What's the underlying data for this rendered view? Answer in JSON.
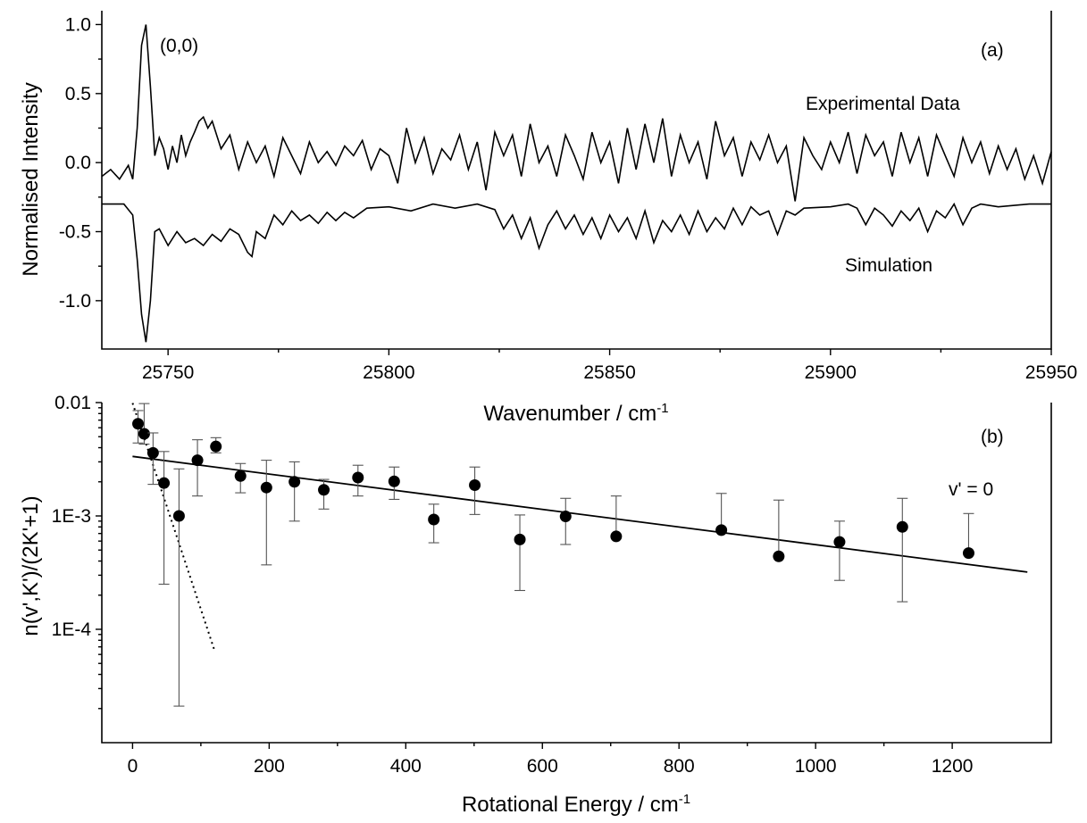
{
  "chart_data": [
    {
      "panel": "(a)",
      "type": "line",
      "annotation_peak": "(0,0)",
      "xlabel": "Wavenumber / cm",
      "xlabel_sup": "-1",
      "ylabel": "Normalised Intensity",
      "xlim": [
        25735,
        25950
      ],
      "ylim": [
        -1.35,
        1.1
      ],
      "xticks": [
        25750,
        25800,
        25850,
        25900,
        25950
      ],
      "yticks": [
        1.0,
        0.5,
        0.0,
        -0.5,
        -1.0
      ],
      "ytick_labels": [
        "1.0",
        "0.5",
        "0.0",
        "-0.5",
        "-1.0"
      ],
      "series": [
        {
          "name": "Experimental Data",
          "baseline": 0.0,
          "x": [
            25735,
            25737,
            25739,
            25741,
            25742,
            25743,
            25744,
            25745,
            25746,
            25747,
            25748,
            25749,
            25750,
            25751,
            25752,
            25753,
            25754,
            25755,
            25756,
            25757,
            25758,
            25759,
            25760,
            25762,
            25764,
            25766,
            25768,
            25770,
            25772,
            25774,
            25776,
            25778,
            25780,
            25782,
            25784,
            25786,
            25788,
            25790,
            25792,
            25794,
            25796,
            25798,
            25800,
            25802,
            25804,
            25806,
            25808,
            25810,
            25812,
            25814,
            25816,
            25818,
            25820,
            25822,
            25824,
            25826,
            25828,
            25830,
            25832,
            25834,
            25836,
            25838,
            25840,
            25842,
            25844,
            25846,
            25848,
            25850,
            25852,
            25854,
            25856,
            25858,
            25860,
            25862,
            25864,
            25866,
            25868,
            25870,
            25872,
            25874,
            25876,
            25878,
            25880,
            25882,
            25884,
            25886,
            25888,
            25890,
            25892,
            25894,
            25896,
            25898,
            25900,
            25902,
            25904,
            25906,
            25908,
            25910,
            25912,
            25914,
            25916,
            25918,
            25920,
            25922,
            25924,
            25926,
            25928,
            25930,
            25932,
            25934,
            25936,
            25938,
            25940,
            25942,
            25944,
            25946,
            25948,
            25950
          ],
          "y": [
            -0.1,
            -0.05,
            -0.12,
            -0.02,
            -0.12,
            0.25,
            0.85,
            1.0,
            0.55,
            0.05,
            0.18,
            0.1,
            -0.05,
            0.12,
            0.0,
            0.2,
            0.05,
            0.15,
            0.22,
            0.3,
            0.33,
            0.25,
            0.3,
            0.1,
            0.2,
            -0.05,
            0.15,
            0.0,
            0.12,
            -0.1,
            0.18,
            0.05,
            -0.08,
            0.15,
            0.0,
            0.08,
            -0.02,
            0.12,
            0.05,
            0.16,
            -0.05,
            0.1,
            0.05,
            -0.15,
            0.25,
            0.0,
            0.18,
            -0.08,
            0.1,
            0.02,
            0.2,
            -0.05,
            0.15,
            -0.2,
            0.22,
            0.05,
            0.2,
            -0.1,
            0.28,
            0.0,
            0.12,
            -0.1,
            0.2,
            0.05,
            -0.12,
            0.22,
            0.0,
            0.15,
            -0.15,
            0.25,
            -0.05,
            0.28,
            0.0,
            0.32,
            -0.1,
            0.2,
            0.0,
            0.15,
            -0.12,
            0.3,
            0.05,
            0.18,
            -0.1,
            0.15,
            0.02,
            0.2,
            0.0,
            0.12,
            -0.28,
            0.18,
            0.05,
            -0.05,
            0.15,
            0.0,
            0.22,
            -0.08,
            0.2,
            0.05,
            0.15,
            -0.1,
            0.22,
            0.0,
            0.18,
            -0.1,
            0.2,
            0.05,
            -0.1,
            0.18,
            0.0,
            0.15,
            -0.08,
            0.12,
            -0.05,
            0.1,
            -0.12,
            0.05,
            -0.15,
            0.08
          ]
        },
        {
          "name": "Simulation",
          "baseline": -0.3,
          "x": [
            25735,
            25740,
            25742,
            25743,
            25744,
            25745,
            25746,
            25747,
            25748,
            25750,
            25752,
            25754,
            25756,
            25758,
            25760,
            25762,
            25764,
            25766,
            25768,
            25769,
            25770,
            25772,
            25774,
            25776,
            25778,
            25780,
            25782,
            25784,
            25786,
            25788,
            25790,
            25792,
            25795,
            25800,
            25805,
            25810,
            25815,
            25820,
            25824,
            25826,
            25828,
            25830,
            25832,
            25834,
            25836,
            25838,
            25840,
            25842,
            25844,
            25846,
            25848,
            25850,
            25852,
            25854,
            25856,
            25858,
            25860,
            25862,
            25864,
            25866,
            25868,
            25870,
            25872,
            25874,
            25876,
            25878,
            25880,
            25882,
            25884,
            25886,
            25888,
            25890,
            25892,
            25894,
            25900,
            25904,
            25906,
            25908,
            25910,
            25912,
            25914,
            25916,
            25918,
            25920,
            25922,
            25924,
            25926,
            25928,
            25930,
            25932,
            25934,
            25938,
            25945,
            25950
          ],
          "y": [
            -0.3,
            -0.3,
            -0.38,
            -0.7,
            -1.1,
            -1.3,
            -1.0,
            -0.5,
            -0.48,
            -0.6,
            -0.5,
            -0.58,
            -0.55,
            -0.6,
            -0.52,
            -0.57,
            -0.48,
            -0.52,
            -0.65,
            -0.68,
            -0.5,
            -0.55,
            -0.38,
            -0.45,
            -0.35,
            -0.42,
            -0.38,
            -0.44,
            -0.36,
            -0.42,
            -0.36,
            -0.4,
            -0.33,
            -0.32,
            -0.35,
            -0.3,
            -0.33,
            -0.3,
            -0.34,
            -0.48,
            -0.38,
            -0.55,
            -0.4,
            -0.62,
            -0.45,
            -0.35,
            -0.48,
            -0.38,
            -0.52,
            -0.4,
            -0.55,
            -0.38,
            -0.5,
            -0.4,
            -0.55,
            -0.35,
            -0.58,
            -0.42,
            -0.5,
            -0.38,
            -0.52,
            -0.35,
            -0.5,
            -0.4,
            -0.48,
            -0.33,
            -0.45,
            -0.32,
            -0.38,
            -0.35,
            -0.52,
            -0.35,
            -0.38,
            -0.33,
            -0.32,
            -0.3,
            -0.33,
            -0.45,
            -0.33,
            -0.38,
            -0.46,
            -0.35,
            -0.42,
            -0.33,
            -0.5,
            -0.35,
            -0.4,
            -0.3,
            -0.45,
            -0.33,
            -0.3,
            -0.32,
            -0.3,
            -0.3
          ]
        }
      ]
    },
    {
      "panel": "(b)",
      "type": "scatter",
      "annotation_v": "v' = 0",
      "xlabel": "Rotational Energy / cm",
      "xlabel_sup": "-1",
      "ylabel": "n(v',K')/(2K'+1)",
      "xlim": [
        -45,
        1345
      ],
      "ylim": [
        1e-05,
        0.01
      ],
      "yscale": "log",
      "xticks": [
        0,
        200,
        400,
        600,
        800,
        1000,
        1200
      ],
      "yticks": [
        0.01,
        0.001,
        0.0001
      ],
      "ytick_labels": [
        "0.01",
        "1E-3",
        "1E-4"
      ],
      "points": {
        "x": [
          8,
          17,
          30,
          46,
          68,
          95,
          122,
          158,
          196,
          237,
          280,
          330,
          383,
          441,
          501,
          567,
          634,
          708,
          862,
          946,
          1035,
          1127,
          1224
        ],
        "y": [
          0.0065,
          0.0053,
          0.0036,
          0.00195,
          0.001,
          0.0031,
          0.0041,
          0.00225,
          0.00178,
          0.002,
          0.0017,
          0.00218,
          0.00202,
          0.00093,
          0.00187,
          0.00062,
          0.00099,
          0.00066,
          0.00075,
          0.00044,
          0.00059,
          0.0008,
          0.00047
        ],
        "err_low": [
          0.0044,
          0.0043,
          0.0019,
          0.00025,
          2.1e-05,
          0.0015,
          0.0036,
          0.0016,
          0.00037,
          0.0009,
          0.00115,
          0.0015,
          0.0014,
          0.00058,
          0.00103,
          0.00022,
          0.00056,
          0.00066,
          0.00075,
          0.00044,
          0.00027,
          0.000175,
          0.00047
        ],
        "err_high": [
          0.0085,
          0.0098,
          0.0054,
          0.0037,
          0.0026,
          0.0047,
          0.0049,
          0.0029,
          0.0031,
          0.003,
          0.0021,
          0.0028,
          0.0027,
          0.00127,
          0.0027,
          0.00102,
          0.00143,
          0.0015,
          0.00158,
          0.00138,
          0.0009,
          0.00143,
          0.00105
        ]
      },
      "fit_line": {
        "x": [
          0,
          1310
        ],
        "y": [
          0.00335,
          0.00032
        ]
      },
      "fit_dotted": {
        "x": [
          0,
          120
        ],
        "y": [
          0.0099,
          6.5e-05
        ]
      }
    }
  ]
}
